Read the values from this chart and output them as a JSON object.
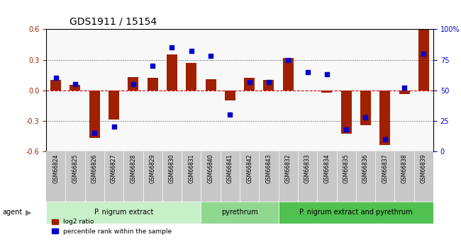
{
  "title": "GDS1911 / 15154",
  "samples": [
    "GSM66824",
    "GSM66825",
    "GSM66826",
    "GSM66827",
    "GSM66828",
    "GSM66829",
    "GSM66830",
    "GSM66831",
    "GSM66840",
    "GSM66841",
    "GSM66842",
    "GSM66843",
    "GSM66832",
    "GSM66833",
    "GSM66834",
    "GSM66835",
    "GSM66836",
    "GSM66837",
    "GSM66838",
    "GSM66839"
  ],
  "log2_ratio": [
    0.1,
    0.05,
    -0.47,
    -0.29,
    0.13,
    0.12,
    0.35,
    0.27,
    0.11,
    -0.1,
    0.12,
    0.1,
    0.32,
    0.0,
    -0.02,
    -0.43,
    -0.34,
    -0.54,
    -0.04,
    0.7
  ],
  "percentile": [
    60,
    55,
    15,
    20,
    55,
    70,
    85,
    82,
    78,
    30,
    57,
    57,
    75,
    65,
    63,
    18,
    28,
    10,
    52,
    80
  ],
  "groups": [
    {
      "label": "P. nigrum extract",
      "start": 0,
      "end": 7,
      "color": "#c8f0c8"
    },
    {
      "label": "pyrethrum",
      "start": 8,
      "end": 11,
      "color": "#a0e0a0"
    },
    {
      "label": "P. nigrum extract and pyrethrum",
      "start": 12,
      "end": 19,
      "color": "#50c050"
    }
  ],
  "ylim_left": [
    -0.6,
    0.6
  ],
  "ylim_right": [
    0,
    100
  ],
  "yticks_left": [
    -0.6,
    -0.3,
    0.0,
    0.3,
    0.6
  ],
  "yticks_right": [
    0,
    25,
    50,
    75,
    100
  ],
  "bar_color": "#a02000",
  "dot_color": "#0000cc",
  "zero_line_color": "#cc0000",
  "grid_color": "#000000",
  "bg_color": "#f0f0f0",
  "tick_bg": "#c8c8c8",
  "legend_bar": "log2 ratio",
  "legend_dot": "percentile rank within the sample",
  "agent_label": "agent"
}
